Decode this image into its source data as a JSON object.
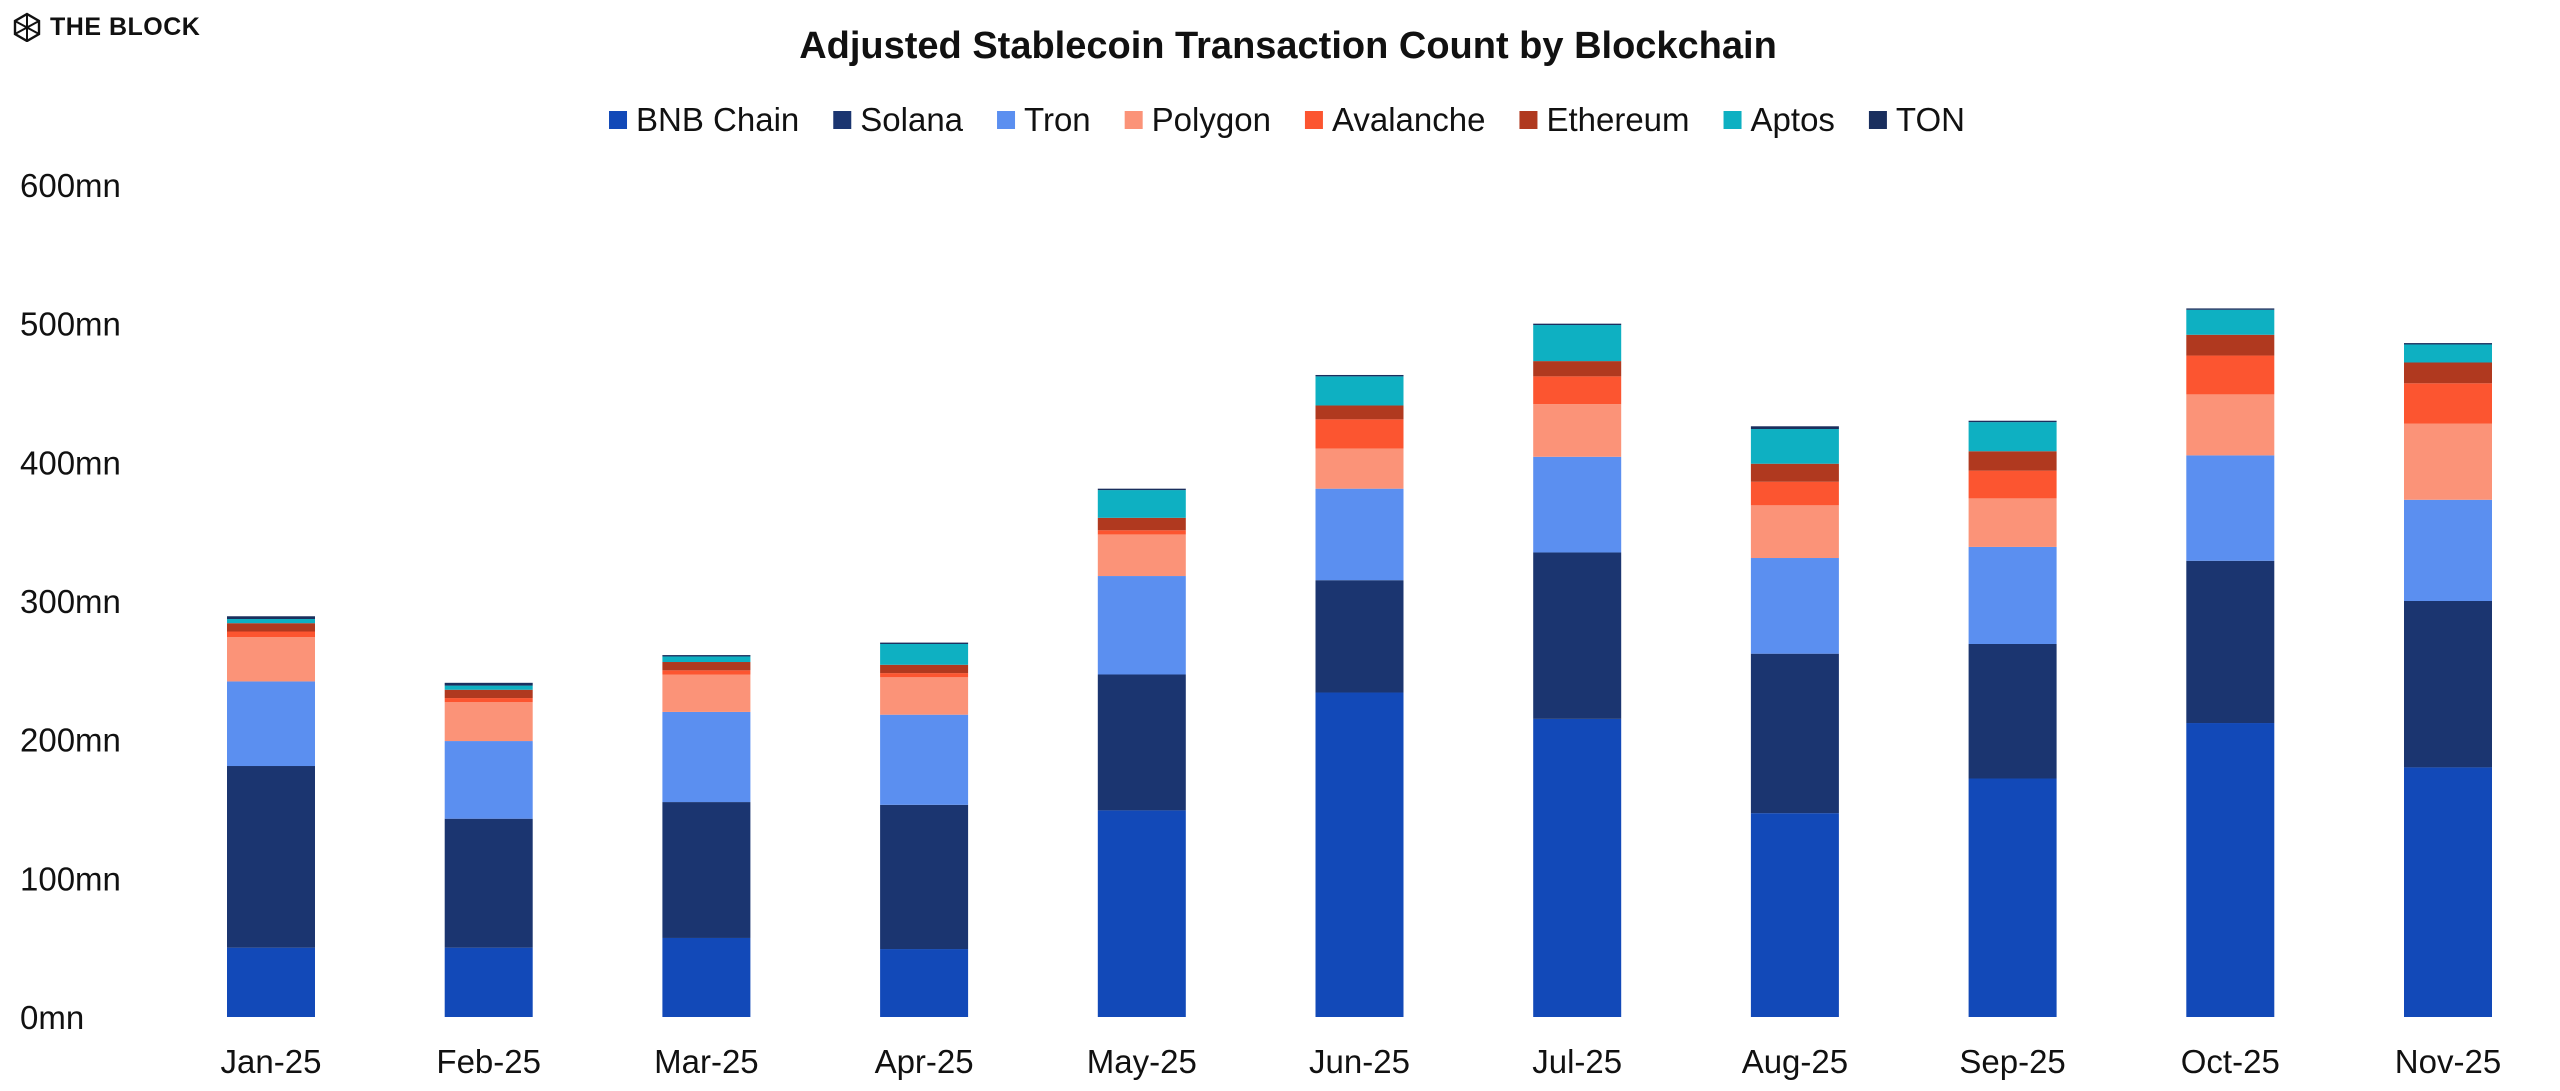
{
  "brand": {
    "logo_text": "THE BLOCK",
    "logo_icon": "cube-icon"
  },
  "chart_data": {
    "type": "bar",
    "stacked": true,
    "title": "Adjusted Stablecoin Transaction Count by Blockchain",
    "xlabel": "",
    "ylabel": "",
    "ylim": [
      0,
      600
    ],
    "yticks": [
      "0mn",
      "100mn",
      "200mn",
      "300mn",
      "400mn",
      "500mn",
      "600mn"
    ],
    "ytick_values": [
      0,
      100,
      200,
      300,
      400,
      500,
      600
    ],
    "grid": false,
    "legend_position": "top-center",
    "categories": [
      "Jan-25",
      "Feb-25",
      "Mar-25",
      "Apr-25",
      "May-25",
      "Jun-25",
      "Jul-25",
      "Aug-25",
      "Sep-25",
      "Oct-25",
      "Nov-25"
    ],
    "series": [
      {
        "name": "BNB Chain",
        "color": "#1249b8",
        "values": [
          50,
          50,
          57,
          49,
          149,
          234,
          215,
          147,
          172,
          212,
          180
        ]
      },
      {
        "name": "Solana",
        "color": "#1b3570",
        "values": [
          131,
          93,
          98,
          104,
          98,
          81,
          120,
          115,
          97,
          117,
          120
        ]
      },
      {
        "name": "Tron",
        "color": "#5b8ff0",
        "values": [
          61,
          56,
          65,
          65,
          71,
          66,
          69,
          69,
          70,
          76,
          73
        ]
      },
      {
        "name": "Polygon",
        "color": "#fb9378",
        "values": [
          32,
          28,
          27,
          27,
          30,
          29,
          38,
          38,
          35,
          44,
          55
        ]
      },
      {
        "name": "Avalanche",
        "color": "#fc5530",
        "values": [
          4,
          3,
          3,
          3,
          3,
          21,
          20,
          17,
          20,
          28,
          29
        ]
      },
      {
        "name": "Ethereum",
        "color": "#b0391f",
        "values": [
          6,
          6,
          6,
          6,
          9,
          10,
          11,
          13,
          14,
          15,
          15
        ]
      },
      {
        "name": "Aptos",
        "color": "#0eb0c2",
        "values": [
          3,
          3,
          4,
          15,
          20,
          21,
          26,
          25,
          21,
          18,
          13
        ]
      },
      {
        "name": "TON",
        "color": "#1a2f5e",
        "values": [
          2,
          2,
          1,
          1,
          1,
          1,
          1,
          2,
          1,
          1,
          1
        ]
      }
    ]
  }
}
